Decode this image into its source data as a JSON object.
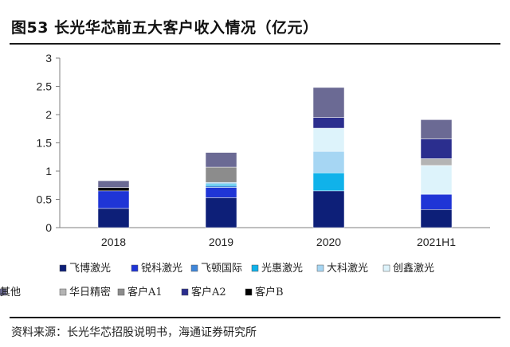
{
  "title": "图53 长光华芯前五大客户收入情况（亿元）",
  "source": "资料来源：长光华芯招股说明书，海通证券研究所",
  "chart_data": {
    "type": "bar",
    "stacked": true,
    "categories": [
      "2018",
      "2019",
      "2020",
      "2021H1"
    ],
    "ylim": [
      0,
      3
    ],
    "yticks": [
      0,
      0.5,
      1,
      1.5,
      2,
      2.5,
      3
    ],
    "grid": false,
    "legend_position": "bottom",
    "series": [
      {
        "name": "飞博激光",
        "color": "#0d1f78",
        "values": [
          0.34,
          0.53,
          0.65,
          0.32
        ]
      },
      {
        "name": "锐科激光",
        "color": "#1f35d6",
        "values": [
          0.31,
          0.18,
          0.0,
          0.27
        ]
      },
      {
        "name": "飞顿国际",
        "color": "#3f86d9",
        "values": [
          0.0,
          0.03,
          0.0,
          0.0
        ]
      },
      {
        "name": "光惠激光",
        "color": "#10b2ea",
        "values": [
          0.0,
          0.03,
          0.32,
          0.0
        ]
      },
      {
        "name": "大科激光",
        "color": "#a6d6f3",
        "values": [
          0.0,
          0.03,
          0.38,
          0.0
        ]
      },
      {
        "name": "创鑫激光",
        "color": "#ddf3fb",
        "values": [
          0.0,
          0.0,
          0.41,
          0.51
        ]
      },
      {
        "name": "华日精密",
        "color": "#b4b4b4",
        "values": [
          0.0,
          0.0,
          0.0,
          0.12
        ]
      },
      {
        "name": "客户A1",
        "color": "#8c8c8c",
        "values": [
          0.0,
          0.27,
          0.0,
          0.0
        ]
      },
      {
        "name": "客户A2",
        "color": "#2b2e8e",
        "values": [
          0.0,
          0.0,
          0.19,
          0.35
        ]
      },
      {
        "name": "客户B",
        "color": "#000000",
        "values": [
          0.06,
          0.0,
          0.0,
          0.0
        ]
      },
      {
        "name": "其他",
        "color": "#6b6a94",
        "values": [
          0.12,
          0.26,
          0.53,
          0.34
        ]
      }
    ]
  }
}
